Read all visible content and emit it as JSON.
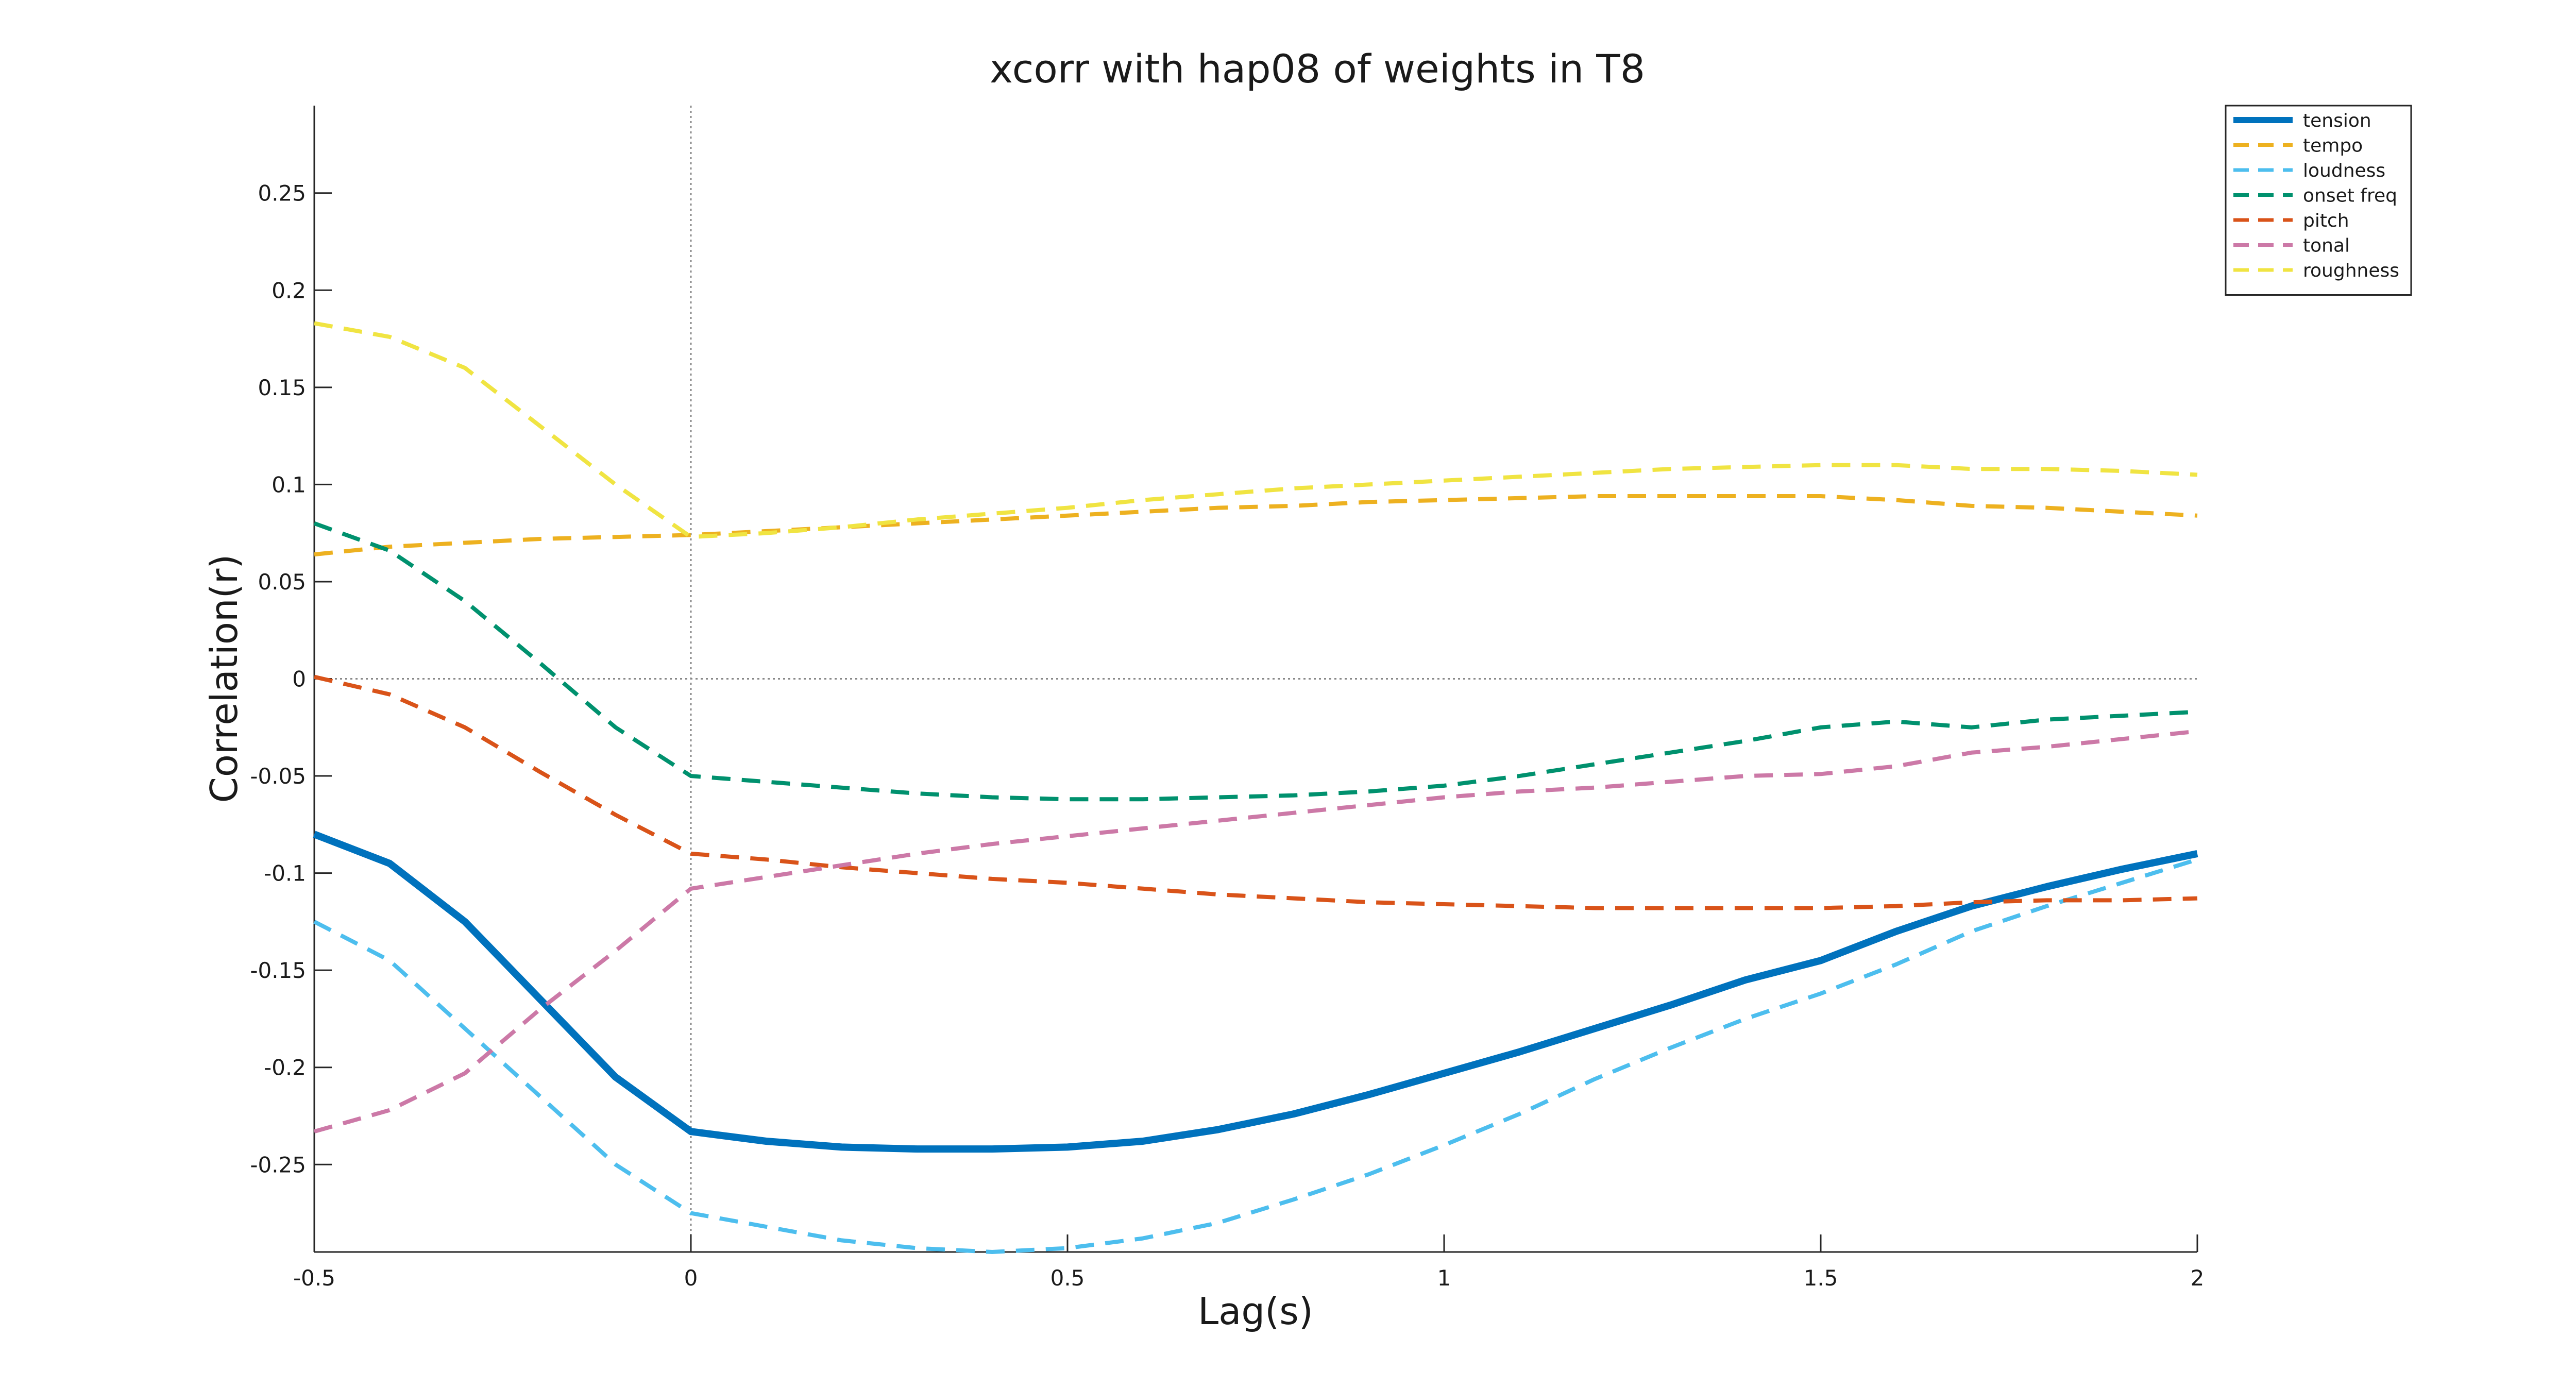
{
  "chart_data": {
    "type": "line",
    "title": "xcorr with hap08 of weights in T8",
    "xlabel": "Lag(s)",
    "ylabel": "Correlation(r)",
    "xlim": [
      -0.5,
      2
    ],
    "ylim": [
      -0.295,
      0.295
    ],
    "xticks": [
      -0.5,
      0,
      0.5,
      1,
      1.5,
      2
    ],
    "xtick_labels": [
      "-0.5",
      "0",
      "0.5",
      "1",
      "1.5",
      "2"
    ],
    "yticks": [
      -0.25,
      -0.2,
      -0.15,
      -0.1,
      -0.05,
      0,
      0.05,
      0.1,
      0.15,
      0.2,
      0.25
    ],
    "ytick_labels": [
      "-0.25",
      "-0.2",
      "-0.15",
      "-0.1",
      "-0.05",
      "0",
      "0.05",
      "0.1",
      "0.15",
      "0.2",
      "0.25"
    ],
    "reference_lines": {
      "x": 0,
      "y": 0
    },
    "legend_position": "top-right",
    "grid": false,
    "x": [
      -0.5,
      -0.4,
      -0.3,
      -0.2,
      -0.1,
      0,
      0.1,
      0.2,
      0.3,
      0.4,
      0.5,
      0.6,
      0.7,
      0.8,
      0.9,
      1.0,
      1.1,
      1.2,
      1.3,
      1.4,
      1.5,
      1.6,
      1.7,
      1.8,
      1.9,
      2.0
    ],
    "series": [
      {
        "name": "tension",
        "color": "#0072bd",
        "style": "solid",
        "values": [
          -0.08,
          -0.095,
          -0.125,
          -0.165,
          -0.205,
          -0.233,
          -0.238,
          -0.241,
          -0.242,
          -0.242,
          -0.241,
          -0.238,
          -0.232,
          -0.224,
          -0.214,
          -0.203,
          -0.192,
          -0.18,
          -0.168,
          -0.155,
          -0.145,
          -0.13,
          -0.117,
          -0.107,
          -0.098,
          -0.09
        ]
      },
      {
        "name": "tempo",
        "color": "#edb120",
        "style": "dashed",
        "values": [
          0.064,
          0.068,
          0.07,
          0.072,
          0.073,
          0.074,
          0.076,
          0.078,
          0.08,
          0.082,
          0.084,
          0.086,
          0.088,
          0.089,
          0.091,
          0.092,
          0.093,
          0.094,
          0.094,
          0.094,
          0.094,
          0.092,
          0.089,
          0.088,
          0.086,
          0.084
        ]
      },
      {
        "name": "loudness",
        "color": "#4dbeee",
        "style": "dashed",
        "values": [
          -0.125,
          -0.145,
          -0.18,
          -0.215,
          -0.25,
          -0.275,
          -0.282,
          -0.289,
          -0.293,
          -0.295,
          -0.293,
          -0.288,
          -0.28,
          -0.268,
          -0.255,
          -0.24,
          -0.224,
          -0.206,
          -0.19,
          -0.175,
          -0.162,
          -0.147,
          -0.13,
          -0.117,
          -0.105,
          -0.093
        ]
      },
      {
        "name": "onset freq",
        "color": "#00916e",
        "style": "dashed",
        "values": [
          0.08,
          0.066,
          0.04,
          0.008,
          -0.025,
          -0.05,
          -0.053,
          -0.056,
          -0.059,
          -0.061,
          -0.062,
          -0.062,
          -0.061,
          -0.06,
          -0.058,
          -0.055,
          -0.05,
          -0.044,
          -0.038,
          -0.032,
          -0.025,
          -0.022,
          -0.025,
          -0.021,
          -0.019,
          -0.017
        ]
      },
      {
        "name": "pitch",
        "color": "#d95319",
        "style": "dashed",
        "values": [
          0.001,
          -0.008,
          -0.025,
          -0.048,
          -0.07,
          -0.09,
          -0.093,
          -0.097,
          -0.1,
          -0.103,
          -0.105,
          -0.108,
          -0.111,
          -0.113,
          -0.115,
          -0.116,
          -0.117,
          -0.118,
          -0.118,
          -0.118,
          -0.118,
          -0.117,
          -0.115,
          -0.114,
          -0.114,
          -0.113
        ]
      },
      {
        "name": "tonal",
        "color": "#cc79a7",
        "style": "dashed",
        "values": [
          -0.233,
          -0.222,
          -0.203,
          -0.17,
          -0.14,
          -0.108,
          -0.102,
          -0.096,
          -0.09,
          -0.085,
          -0.081,
          -0.077,
          -0.073,
          -0.069,
          -0.065,
          -0.061,
          -0.058,
          -0.056,
          -0.053,
          -0.05,
          -0.049,
          -0.045,
          -0.038,
          -0.035,
          -0.031,
          -0.027
        ]
      },
      {
        "name": "roughness",
        "color": "#f0e442",
        "style": "dashed",
        "values": [
          0.183,
          0.176,
          0.16,
          0.13,
          0.1,
          0.073,
          0.075,
          0.078,
          0.082,
          0.085,
          0.088,
          0.092,
          0.095,
          0.098,
          0.1,
          0.102,
          0.104,
          0.106,
          0.108,
          0.109,
          0.11,
          0.11,
          0.108,
          0.108,
          0.107,
          0.105
        ]
      }
    ]
  }
}
